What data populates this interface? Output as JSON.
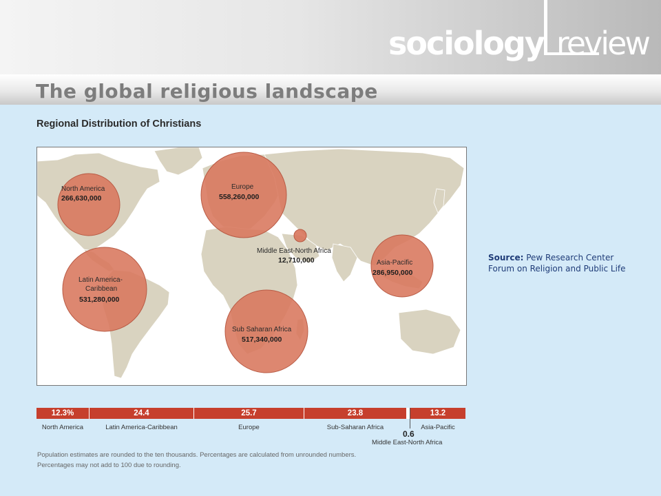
{
  "header": {
    "logo_left": "sociology",
    "logo_right": "review",
    "title": "The global religious landscape"
  },
  "figure": {
    "subtitle": "Regional Distribution of Christians",
    "regions": [
      {
        "name": "North America",
        "value": "266,630,000"
      },
      {
        "name": "Europe",
        "value": "558,260,000"
      },
      {
        "name": "Middle East-North Africa",
        "value": "12,710,000"
      },
      {
        "name": "Asia-Pacific",
        "value": "286,950,000"
      },
      {
        "name_line1": "Latin America-",
        "name_line2": "Caribbean",
        "value": "531,280,000"
      },
      {
        "name": "Sub Saharan Africa",
        "value": "517,340,000"
      }
    ],
    "percent_bar": [
      {
        "label": "North America",
        "value": "12.3%"
      },
      {
        "label": "Latin America-Caribbean",
        "value": "24.4"
      },
      {
        "label": "Europe",
        "value": "25.7"
      },
      {
        "label": "Sub-Saharan Africa",
        "value": "23.8"
      },
      {
        "label": "Asia-Pacific",
        "value": "13.2"
      }
    ],
    "mena": {
      "value": "0.6",
      "label": "Middle East-North Africa"
    },
    "note_line1": "Population estimates are rounded to the ten thousands.  Percentages are calculated from unrounded numbers.",
    "note_line2": "Percentages may not add to 100 due to rounding."
  },
  "source": {
    "label": "Source:",
    "text": "Pew Research Center Forum on Religion  and Public Life"
  },
  "colors": {
    "bubble": "#d8765c",
    "bar": "#c63f2d",
    "land": "#d9d3c0",
    "background": "#d4eaf8"
  }
}
